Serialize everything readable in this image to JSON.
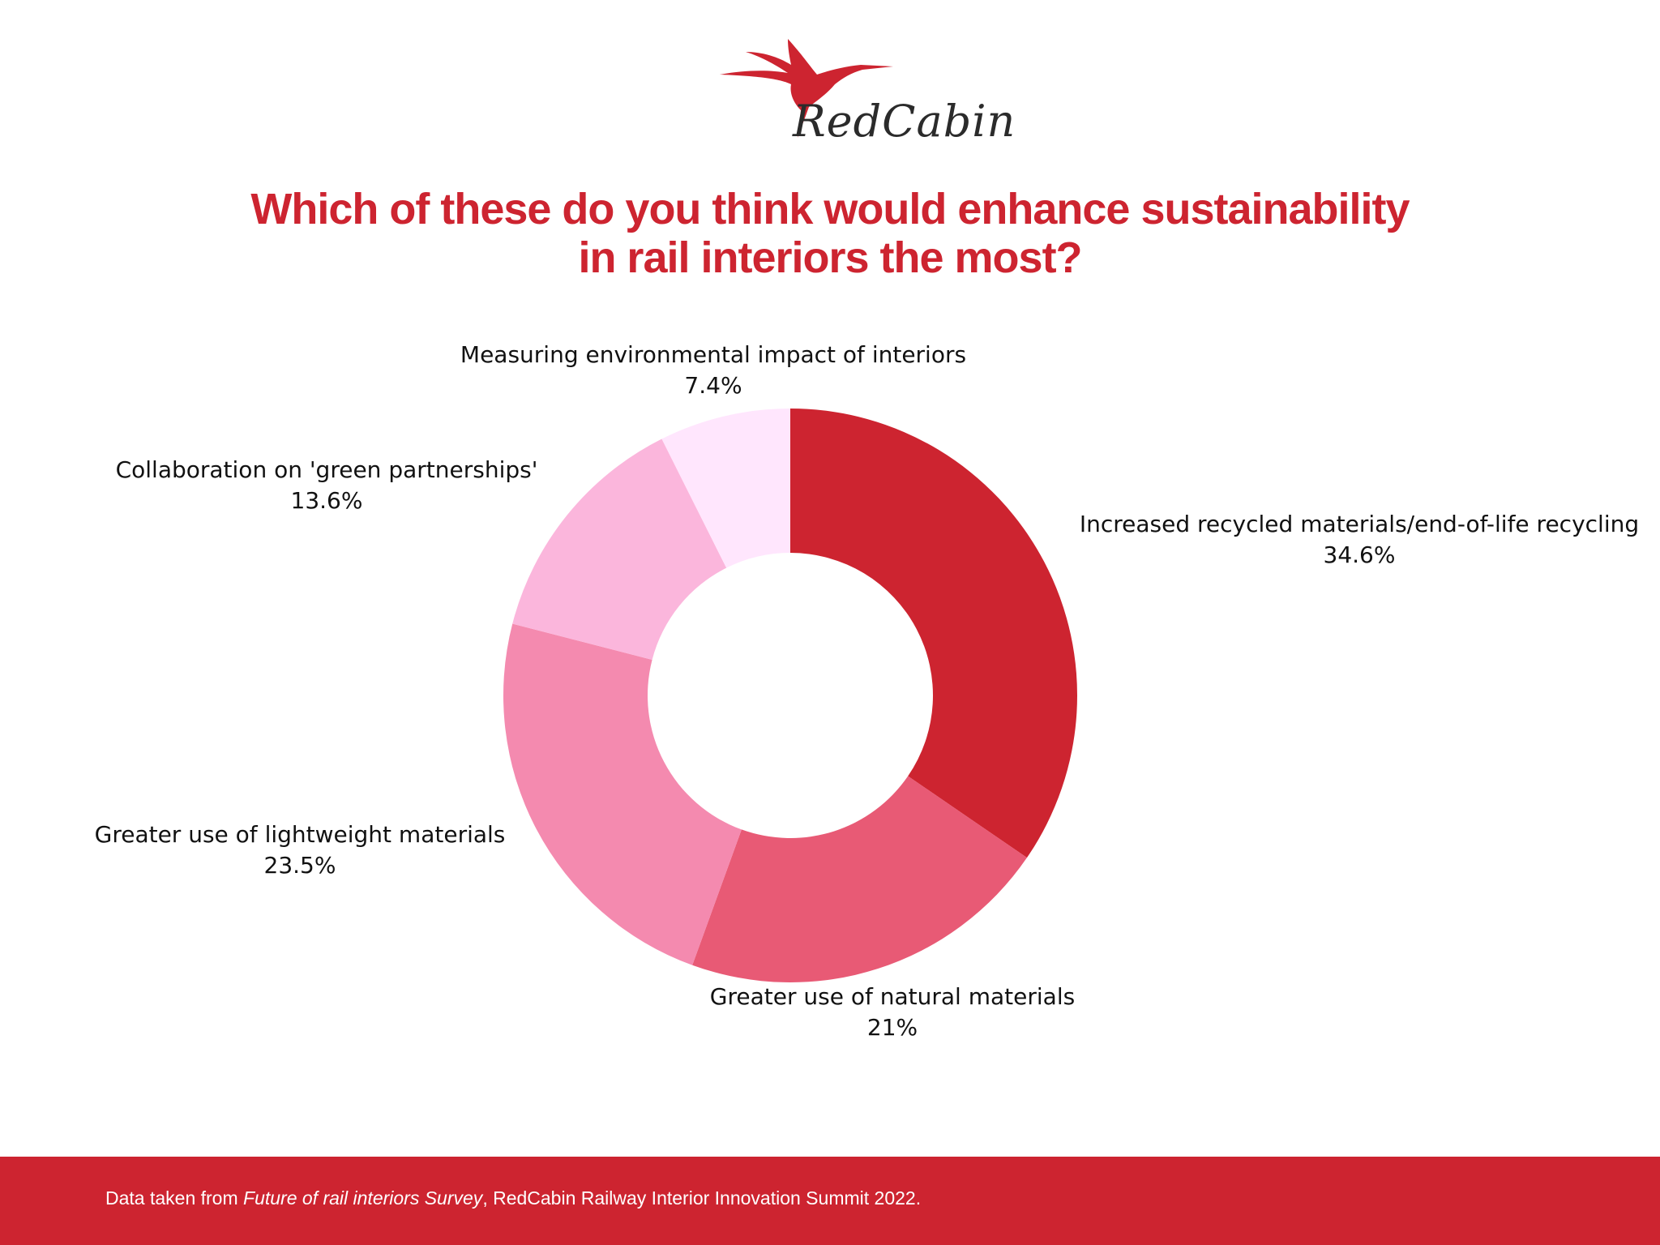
{
  "brand": {
    "name": "RedCabin",
    "logo_icon": "hummingbird-icon",
    "accent_color": "#cd2430"
  },
  "title": {
    "line1": "Which of these do you think would enhance sustainability",
    "line2": "in rail interiors the most?"
  },
  "chart_data": {
    "type": "pie",
    "variant": "donut",
    "title": "Which of these do you think would enhance sustainability in rail interiors the most?",
    "start_angle_deg": 0,
    "direction": "clockwise",
    "slices": [
      {
        "label": "Increased recycled materials/end-of-life recycling",
        "value": 34.6,
        "value_label": "34.6%",
        "color": "#cd2430"
      },
      {
        "label": "Greater use of natural materials",
        "value": 21,
        "value_label": "21%",
        "color": "#e85a75"
      },
      {
        "label": "Greater use of lightweight materials",
        "value": 23.5,
        "value_label": "23.5%",
        "color": "#f48aaf"
      },
      {
        "label": "Collaboration on 'green partnerships'",
        "value": 13.6,
        "value_label": "13.6%",
        "color": "#fbb6dc"
      },
      {
        "label": "Measuring environmental impact of interiors",
        "value": 7.4,
        "value_label": "7.4%",
        "color": "#ffe6fd"
      }
    ]
  },
  "footer": {
    "prefix": "Data taken from ",
    "source_italic": "Future of rail interiors Survey",
    "suffix": ", RedCabin Railway Interior Innovation Summit 2022."
  }
}
